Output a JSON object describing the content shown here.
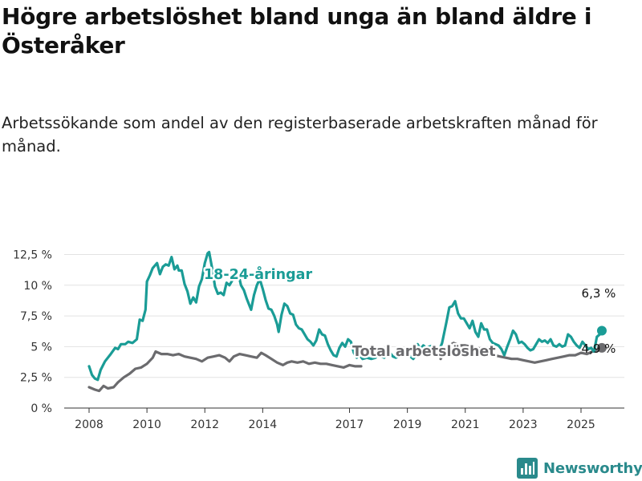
{
  "header": {
    "title": "Högre arbetslöshet bland unga än bland äldre i Österåker",
    "subtitle": "Arbetssökande som andel av den registerbaserade arbetskraften månad för månad."
  },
  "brand": {
    "name": "Newsworthy",
    "icon": "bar-chart-logo-icon",
    "color": "#2a8a8c"
  },
  "chart_data": {
    "type": "line",
    "xlabel": "",
    "ylabel": "",
    "xlim": [
      2007.7,
      2026.6
    ],
    "ylim": [
      0,
      13
    ],
    "grid": true,
    "x_ticks": [
      2008,
      2010,
      2012,
      2014,
      2017,
      2019,
      2021,
      2023,
      2025
    ],
    "x_tick_labels": [
      "2008",
      "2010",
      "2012",
      "2014",
      "2017",
      "2019",
      "2021",
      "2023",
      "2025"
    ],
    "y_ticks": [
      0,
      2.5,
      5,
      7.5,
      10,
      12.5
    ],
    "y_tick_labels": [
      "0 %",
      "2,5 %",
      "5 %",
      "7,5 %",
      "10 %",
      "12,5 %"
    ],
    "series": [
      {
        "name": "18-24-åringar",
        "color": "#1a9c96",
        "end_label": "6,3 %",
        "points": [
          [
            2008.0,
            3.4
          ],
          [
            2008.1,
            2.7
          ],
          [
            2008.2,
            2.4
          ],
          [
            2008.3,
            2.3
          ],
          [
            2008.4,
            3.1
          ],
          [
            2008.55,
            3.8
          ],
          [
            2008.75,
            4.4
          ],
          [
            2008.9,
            4.9
          ],
          [
            2009.0,
            4.8
          ],
          [
            2009.1,
            5.2
          ],
          [
            2009.25,
            5.2
          ],
          [
            2009.35,
            5.4
          ],
          [
            2009.5,
            5.3
          ],
          [
            2009.65,
            5.6
          ],
          [
            2009.75,
            7.2
          ],
          [
            2009.85,
            7.1
          ],
          [
            2009.95,
            8.0
          ],
          [
            2010.0,
            10.3
          ],
          [
            2010.1,
            10.8
          ],
          [
            2010.2,
            11.4
          ],
          [
            2010.35,
            11.8
          ],
          [
            2010.45,
            10.9
          ],
          [
            2010.55,
            11.5
          ],
          [
            2010.65,
            11.7
          ],
          [
            2010.75,
            11.6
          ],
          [
            2010.85,
            12.3
          ],
          [
            2010.95,
            11.3
          ],
          [
            2011.05,
            11.6
          ],
          [
            2011.1,
            11.2
          ],
          [
            2011.2,
            11.2
          ],
          [
            2011.3,
            10.1
          ],
          [
            2011.4,
            9.5
          ],
          [
            2011.5,
            8.5
          ],
          [
            2011.6,
            9.0
          ],
          [
            2011.7,
            8.6
          ],
          [
            2011.8,
            9.9
          ],
          [
            2011.9,
            10.5
          ],
          [
            2012.0,
            11.8
          ],
          [
            2012.1,
            12.6
          ],
          [
            2012.15,
            12.7
          ],
          [
            2012.25,
            11.4
          ],
          [
            2012.35,
            9.9
          ],
          [
            2012.45,
            9.3
          ],
          [
            2012.55,
            9.4
          ],
          [
            2012.65,
            9.2
          ],
          [
            2012.75,
            10.2
          ],
          [
            2012.85,
            10.0
          ],
          [
            2012.95,
            10.4
          ],
          [
            2013.05,
            10.8
          ],
          [
            2013.15,
            11.0
          ],
          [
            2013.25,
            10.0
          ],
          [
            2013.35,
            9.6
          ],
          [
            2013.45,
            8.9
          ],
          [
            2013.6,
            8.0
          ],
          [
            2013.7,
            9.2
          ],
          [
            2013.8,
            10.0
          ],
          [
            2013.9,
            10.5
          ],
          [
            2014.0,
            9.7
          ],
          [
            2014.1,
            8.8
          ],
          [
            2014.2,
            8.1
          ],
          [
            2014.3,
            8.0
          ],
          [
            2014.4,
            7.5
          ],
          [
            2014.5,
            6.8
          ],
          [
            2014.55,
            6.2
          ],
          [
            2014.65,
            7.6
          ],
          [
            2014.75,
            8.5
          ],
          [
            2014.85,
            8.3
          ],
          [
            2014.95,
            7.7
          ],
          [
            2015.05,
            7.6
          ],
          [
            2015.15,
            6.8
          ],
          [
            2015.25,
            6.5
          ],
          [
            2015.35,
            6.4
          ],
          [
            2015.45,
            6.0
          ],
          [
            2015.55,
            5.6
          ],
          [
            2015.65,
            5.4
          ],
          [
            2015.75,
            5.1
          ],
          [
            2015.85,
            5.5
          ],
          [
            2015.95,
            6.4
          ],
          [
            2016.05,
            6.0
          ],
          [
            2016.15,
            5.9
          ],
          [
            2016.25,
            5.2
          ],
          [
            2016.35,
            4.7
          ],
          [
            2016.45,
            4.3
          ],
          [
            2016.55,
            4.2
          ],
          [
            2016.65,
            4.9
          ],
          [
            2016.75,
            5.3
          ],
          [
            2016.85,
            5.0
          ],
          [
            2016.95,
            5.6
          ],
          [
            2017.05,
            5.4
          ],
          [
            2017.15,
            4.5
          ],
          [
            2017.25,
            4.1
          ],
          [
            2017.35,
            4.3
          ],
          [
            2017.45,
            4.0
          ],
          [
            2017.6,
            4.1
          ],
          [
            2017.75,
            4.0
          ],
          [
            2017.9,
            4.1
          ],
          [
            2018.0,
            4.5
          ],
          [
            2018.1,
            4.2
          ],
          [
            2018.2,
            4.1
          ],
          [
            2018.3,
            4.6
          ],
          [
            2018.4,
            4.5
          ],
          [
            2018.5,
            4.2
          ],
          [
            2018.6,
            4.1
          ],
          [
            2018.7,
            4.2
          ],
          [
            2018.8,
            4.4
          ],
          [
            2018.9,
            4.3
          ],
          [
            2019.0,
            4.5
          ],
          [
            2019.1,
            4.2
          ],
          [
            2019.2,
            4.0
          ],
          [
            2019.3,
            4.3
          ],
          [
            2019.35,
            5.2
          ],
          [
            2019.45,
            4.8
          ],
          [
            2019.55,
            5.1
          ],
          [
            2019.65,
            4.9
          ],
          [
            2019.75,
            5.0
          ],
          [
            2019.9,
            5.1
          ],
          [
            2020.0,
            4.9
          ],
          [
            2020.1,
            4.7
          ],
          [
            2020.2,
            5.3
          ],
          [
            2020.35,
            7.0
          ],
          [
            2020.45,
            8.2
          ],
          [
            2020.55,
            8.3
          ],
          [
            2020.65,
            8.7
          ],
          [
            2020.75,
            7.7
          ],
          [
            2020.85,
            7.3
          ],
          [
            2020.95,
            7.3
          ],
          [
            2021.05,
            6.9
          ],
          [
            2021.15,
            6.5
          ],
          [
            2021.25,
            7.1
          ],
          [
            2021.35,
            6.2
          ],
          [
            2021.45,
            5.8
          ],
          [
            2021.55,
            6.9
          ],
          [
            2021.65,
            6.4
          ],
          [
            2021.75,
            6.4
          ],
          [
            2021.85,
            5.6
          ],
          [
            2021.95,
            5.3
          ],
          [
            2022.05,
            5.2
          ],
          [
            2022.15,
            5.1
          ],
          [
            2022.25,
            4.8
          ],
          [
            2022.35,
            4.3
          ],
          [
            2022.45,
            5.0
          ],
          [
            2022.55,
            5.6
          ],
          [
            2022.65,
            6.3
          ],
          [
            2022.75,
            6.0
          ],
          [
            2022.85,
            5.3
          ],
          [
            2022.95,
            5.4
          ],
          [
            2023.05,
            5.2
          ],
          [
            2023.15,
            4.9
          ],
          [
            2023.25,
            4.7
          ],
          [
            2023.35,
            4.8
          ],
          [
            2023.45,
            5.2
          ],
          [
            2023.55,
            5.6
          ],
          [
            2023.65,
            5.4
          ],
          [
            2023.75,
            5.5
          ],
          [
            2023.85,
            5.3
          ],
          [
            2023.95,
            5.6
          ],
          [
            2024.05,
            5.1
          ],
          [
            2024.15,
            5.0
          ],
          [
            2024.25,
            5.2
          ],
          [
            2024.35,
            5.0
          ],
          [
            2024.45,
            5.1
          ],
          [
            2024.55,
            6.0
          ],
          [
            2024.65,
            5.8
          ],
          [
            2024.75,
            5.4
          ],
          [
            2024.85,
            5.1
          ],
          [
            2024.95,
            4.9
          ],
          [
            2025.05,
            5.4
          ],
          [
            2025.15,
            5.1
          ],
          [
            2025.25,
            4.8
          ],
          [
            2025.35,
            4.9
          ],
          [
            2025.45,
            4.6
          ],
          [
            2025.55,
            5.8
          ],
          [
            2025.65,
            6.0
          ],
          [
            2025.72,
            6.3
          ]
        ]
      },
      {
        "name": "Total arbetslöshet",
        "color": "#6b6b6e",
        "end_label": "4,9 %",
        "points": [
          [
            2008.0,
            1.7
          ],
          [
            2008.2,
            1.5
          ],
          [
            2008.35,
            1.4
          ],
          [
            2008.5,
            1.8
          ],
          [
            2008.65,
            1.6
          ],
          [
            2008.85,
            1.7
          ],
          [
            2009.0,
            2.1
          ],
          [
            2009.2,
            2.5
          ],
          [
            2009.4,
            2.8
          ],
          [
            2009.6,
            3.2
          ],
          [
            2009.8,
            3.3
          ],
          [
            2010.0,
            3.6
          ],
          [
            2010.2,
            4.1
          ],
          [
            2010.3,
            4.6
          ],
          [
            2010.5,
            4.4
          ],
          [
            2010.7,
            4.4
          ],
          [
            2010.9,
            4.3
          ],
          [
            2011.1,
            4.4
          ],
          [
            2011.3,
            4.2
          ],
          [
            2011.5,
            4.1
          ],
          [
            2011.7,
            4.0
          ],
          [
            2011.9,
            3.8
          ],
          [
            2012.1,
            4.1
          ],
          [
            2012.3,
            4.2
          ],
          [
            2012.5,
            4.3
          ],
          [
            2012.7,
            4.1
          ],
          [
            2012.85,
            3.8
          ],
          [
            2013.0,
            4.2
          ],
          [
            2013.2,
            4.4
          ],
          [
            2013.4,
            4.3
          ],
          [
            2013.6,
            4.2
          ],
          [
            2013.8,
            4.1
          ],
          [
            2013.95,
            4.5
          ],
          [
            2014.1,
            4.3
          ],
          [
            2014.3,
            4.0
          ],
          [
            2014.5,
            3.7
          ],
          [
            2014.7,
            3.5
          ],
          [
            2014.85,
            3.7
          ],
          [
            2015.0,
            3.8
          ],
          [
            2015.2,
            3.7
          ],
          [
            2015.4,
            3.8
          ],
          [
            2015.6,
            3.6
          ],
          [
            2015.8,
            3.7
          ],
          [
            2016.0,
            3.6
          ],
          [
            2016.2,
            3.6
          ],
          [
            2016.4,
            3.5
          ],
          [
            2016.6,
            3.4
          ],
          [
            2016.8,
            3.3
          ],
          [
            2017.0,
            3.5
          ],
          [
            2017.2,
            3.4
          ],
          [
            2017.4,
            3.4
          ]
        ],
        "points_late": [
          [
            2020.15,
            4.0
          ],
          [
            2020.3,
            4.7
          ],
          [
            2020.45,
            5.1
          ],
          [
            2020.6,
            5.3
          ],
          [
            2020.8,
            5.1
          ],
          [
            2021.0,
            5.1
          ],
          [
            2021.2,
            5.0
          ],
          [
            2021.4,
            4.9
          ],
          [
            2021.6,
            4.8
          ],
          [
            2021.8,
            4.6
          ],
          [
            2022.0,
            4.3
          ],
          [
            2022.2,
            4.2
          ],
          [
            2022.4,
            4.1
          ],
          [
            2022.6,
            4.0
          ],
          [
            2022.8,
            4.0
          ],
          [
            2023.0,
            3.9
          ],
          [
            2023.2,
            3.8
          ],
          [
            2023.4,
            3.7
          ],
          [
            2023.6,
            3.8
          ],
          [
            2023.8,
            3.9
          ],
          [
            2024.0,
            4.0
          ],
          [
            2024.2,
            4.1
          ],
          [
            2024.4,
            4.2
          ],
          [
            2024.6,
            4.3
          ],
          [
            2024.8,
            4.3
          ],
          [
            2025.0,
            4.5
          ],
          [
            2025.2,
            4.4
          ],
          [
            2025.4,
            4.6
          ],
          [
            2025.55,
            4.7
          ],
          [
            2025.72,
            4.9
          ]
        ]
      }
    ]
  }
}
